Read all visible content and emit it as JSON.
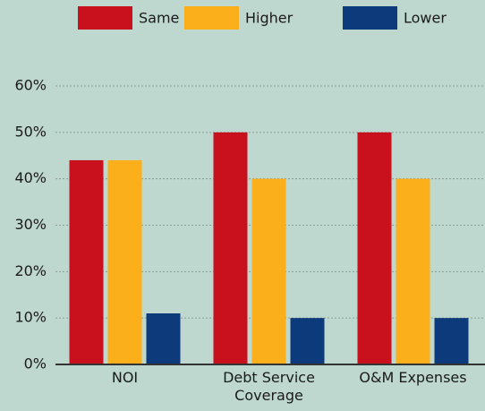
{
  "chart_data": {
    "type": "bar",
    "categories": [
      "NOI",
      "Debt Service Coverage",
      "O&M Expenses"
    ],
    "series": [
      {
        "name": "Same",
        "color": "#c8111d",
        "values": [
          44,
          50,
          50
        ]
      },
      {
        "name": "Higher",
        "color": "#fbb01b",
        "values": [
          44,
          40,
          40
        ]
      },
      {
        "name": "Lower",
        "color": "#0c3a7b",
        "values": [
          11,
          10,
          10
        ]
      }
    ],
    "ylim": [
      0,
      60
    ],
    "yticks": [
      {
        "value": 0,
        "label": "0%"
      },
      {
        "value": 10,
        "label": "10%"
      },
      {
        "value": 20,
        "label": "20%"
      },
      {
        "value": 30,
        "label": "30%"
      },
      {
        "value": 40,
        "label": "40%"
      },
      {
        "value": 50,
        "label": "50%"
      },
      {
        "value": 60,
        "label": "60%"
      }
    ],
    "grid": true,
    "legend": "top"
  }
}
